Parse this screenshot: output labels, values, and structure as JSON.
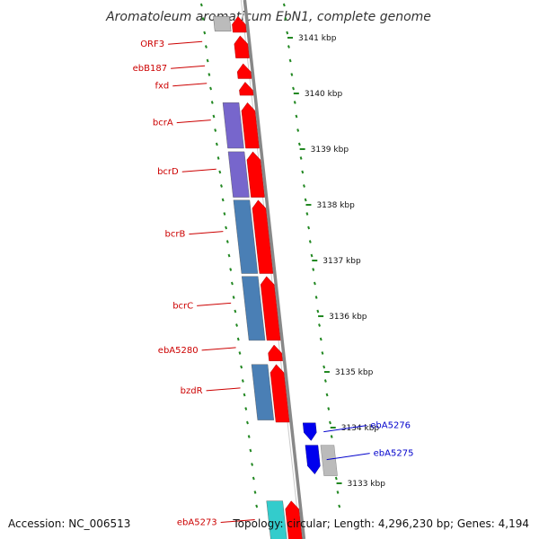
{
  "title": "Aromatoleum aromaticum EbN1, complete genome",
  "footer": {
    "accession": "Accession: NC_006513",
    "topology": "Topology: circular; Length: 4,296,230 bp; Genes: 4,194"
  },
  "colors": {
    "forward_cds": "#ff0000",
    "forward_other": "#bbbbbb",
    "reverse_cds": "#0000ee",
    "reverse_other": "#bbbbbb",
    "purple_feature": "#7766cc",
    "steel_feature": "#4a7fb5",
    "cyan_feature": "#33cccc",
    "backbone": "#888888",
    "ruler_ticks": "#228822",
    "label_forward": "#cc0000",
    "label_reverse": "#0000cc"
  },
  "ruler": {
    "labels": [
      {
        "kbp": 3141,
        "text": "3141 kbp"
      },
      {
        "kbp": 3140,
        "text": "3140 kbp"
      },
      {
        "kbp": 3139,
        "text": "3139 kbp"
      },
      {
        "kbp": 3138,
        "text": "3138 kbp"
      },
      {
        "kbp": 3137,
        "text": "3137 kbp"
      },
      {
        "kbp": 3136,
        "text": "3136 kbp"
      },
      {
        "kbp": 3135,
        "text": "3135 kbp"
      },
      {
        "kbp": 3134,
        "text": "3134 kbp"
      },
      {
        "kbp": 3133,
        "text": "3133 kbp"
      }
    ]
  },
  "genes_forward": [
    {
      "label": "",
      "start": 3141.4,
      "end": 3141.08,
      "kind": "cds"
    },
    {
      "label": "ORF3",
      "start": 3141.05,
      "end": 3140.62,
      "kind": "cds"
    },
    {
      "label": "ebB187",
      "start": 3140.55,
      "end": 3140.25,
      "kind": "cds"
    },
    {
      "label": "fxd",
      "start": 3140.22,
      "end": 3139.95,
      "kind": "cds"
    },
    {
      "label": "bcrA",
      "start": 3139.85,
      "end": 3139.0,
      "kind": "cds"
    },
    {
      "label": "bcrD",
      "start": 3138.97,
      "end": 3138.12,
      "kind": "cds"
    },
    {
      "label": "bcrB",
      "start": 3138.1,
      "end": 3136.75,
      "kind": "cds"
    },
    {
      "label": "bcrC",
      "start": 3136.73,
      "end": 3135.55,
      "kind": "cds"
    },
    {
      "label": "ebA5280",
      "start": 3135.5,
      "end": 3135.18,
      "kind": "cds"
    },
    {
      "label": "bzdR",
      "start": 3135.15,
      "end": 3134.08,
      "kind": "cds"
    },
    {
      "label": "ebA5273",
      "start": 3132.7,
      "end": 3131.8,
      "kind": "cds"
    }
  ],
  "genes_reverse": [
    {
      "label": "ebA5276",
      "start": 3134.1,
      "end": 3133.75,
      "kind": "cds"
    },
    {
      "label": "ebA5275",
      "start": 3133.7,
      "end": 3133.15,
      "kind": "cds"
    }
  ],
  "features_inner": [
    {
      "start": 3141.4,
      "end": 3141.1,
      "type": "gray"
    },
    {
      "start": 3139.85,
      "end": 3139.0,
      "type": "purple"
    },
    {
      "start": 3138.97,
      "end": 3138.12,
      "type": "purple"
    },
    {
      "start": 3138.1,
      "end": 3136.75,
      "type": "steel"
    },
    {
      "start": 3136.73,
      "end": 3135.55,
      "type": "steel"
    },
    {
      "start": 3135.15,
      "end": 3134.12,
      "type": "steel"
    },
    {
      "start": 3132.7,
      "end": 3131.8,
      "type": "cyan"
    }
  ],
  "features_outer": [
    {
      "start": 3133.7,
      "end": 3133.12,
      "type": "gray"
    }
  ]
}
